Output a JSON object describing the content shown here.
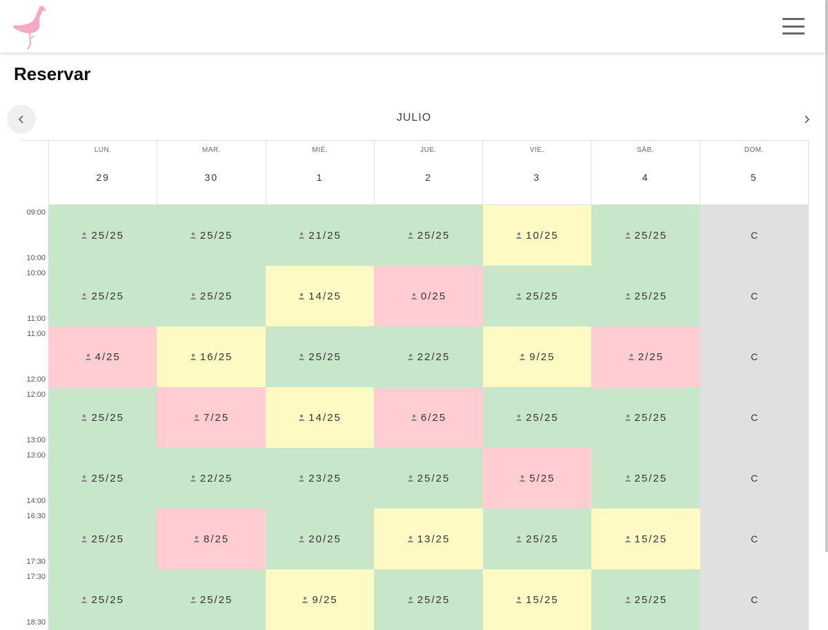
{
  "page": {
    "title": "Reservar"
  },
  "calendar": {
    "month": "JULIO",
    "days": [
      {
        "name": "LUN.",
        "num": "29"
      },
      {
        "name": "MAR.",
        "num": "30"
      },
      {
        "name": "MIÉ.",
        "num": "1"
      },
      {
        "name": "JUE.",
        "num": "2"
      },
      {
        "name": "VIE.",
        "num": "3"
      },
      {
        "name": "SÁB.",
        "num": "4"
      },
      {
        "name": "DOM.",
        "num": "5"
      }
    ],
    "slots": [
      {
        "start": "09:00",
        "end": "10:00",
        "cells": [
          "25/25",
          "25/25",
          "21/25",
          "25/25",
          "10/25",
          "25/25",
          "C"
        ],
        "status": [
          "green",
          "green",
          "green",
          "green",
          "yellow",
          "green",
          "closed"
        ]
      },
      {
        "start": "10:00",
        "end": "11:00",
        "cells": [
          "25/25",
          "25/25",
          "14/25",
          "0/25",
          "25/25",
          "25/25",
          "C"
        ],
        "status": [
          "green",
          "green",
          "yellow",
          "red",
          "green",
          "green",
          "closed"
        ]
      },
      {
        "start": "11:00",
        "end": "12:00",
        "cells": [
          "4/25",
          "16/25",
          "25/25",
          "22/25",
          "9/25",
          "2/25",
          "C"
        ],
        "status": [
          "red",
          "yellow",
          "green",
          "green",
          "yellow",
          "red",
          "closed"
        ]
      },
      {
        "start": "12:00",
        "end": "13:00",
        "cells": [
          "25/25",
          "7/25",
          "14/25",
          "6/25",
          "25/25",
          "25/25",
          "C"
        ],
        "status": [
          "green",
          "red",
          "yellow",
          "red",
          "green",
          "green",
          "closed"
        ]
      },
      {
        "start": "13:00",
        "end": "14:00",
        "cells": [
          "25/25",
          "22/25",
          "23/25",
          "25/25",
          "5/25",
          "25/25",
          "C"
        ],
        "status": [
          "green",
          "green",
          "green",
          "green",
          "red",
          "green",
          "closed"
        ]
      },
      {
        "start": "16:30",
        "end": "17:30",
        "cells": [
          "25/25",
          "8/25",
          "20/25",
          "13/25",
          "25/25",
          "15/25",
          "C"
        ],
        "status": [
          "green",
          "red",
          "green",
          "yellow",
          "green",
          "yellow",
          "closed"
        ]
      },
      {
        "start": "17:30",
        "end": "18:30",
        "cells": [
          "25/25",
          "25/25",
          "9/25",
          "25/25",
          "15/25",
          "25/25",
          "C"
        ],
        "status": [
          "green",
          "green",
          "yellow",
          "green",
          "yellow",
          "green",
          "closed"
        ]
      }
    ]
  },
  "icons": {
    "logo": "flamingo-logo",
    "menu": "hamburger-menu-icon",
    "prev": "chevron-left-icon",
    "next": "chevron-right-icon",
    "person": "person-icon"
  },
  "colors": {
    "logo": "#f7a8c4",
    "available": "#c8e6c9",
    "limited": "#fff9c4",
    "low": "#ffcdd2",
    "closed": "#e0e0e0"
  }
}
